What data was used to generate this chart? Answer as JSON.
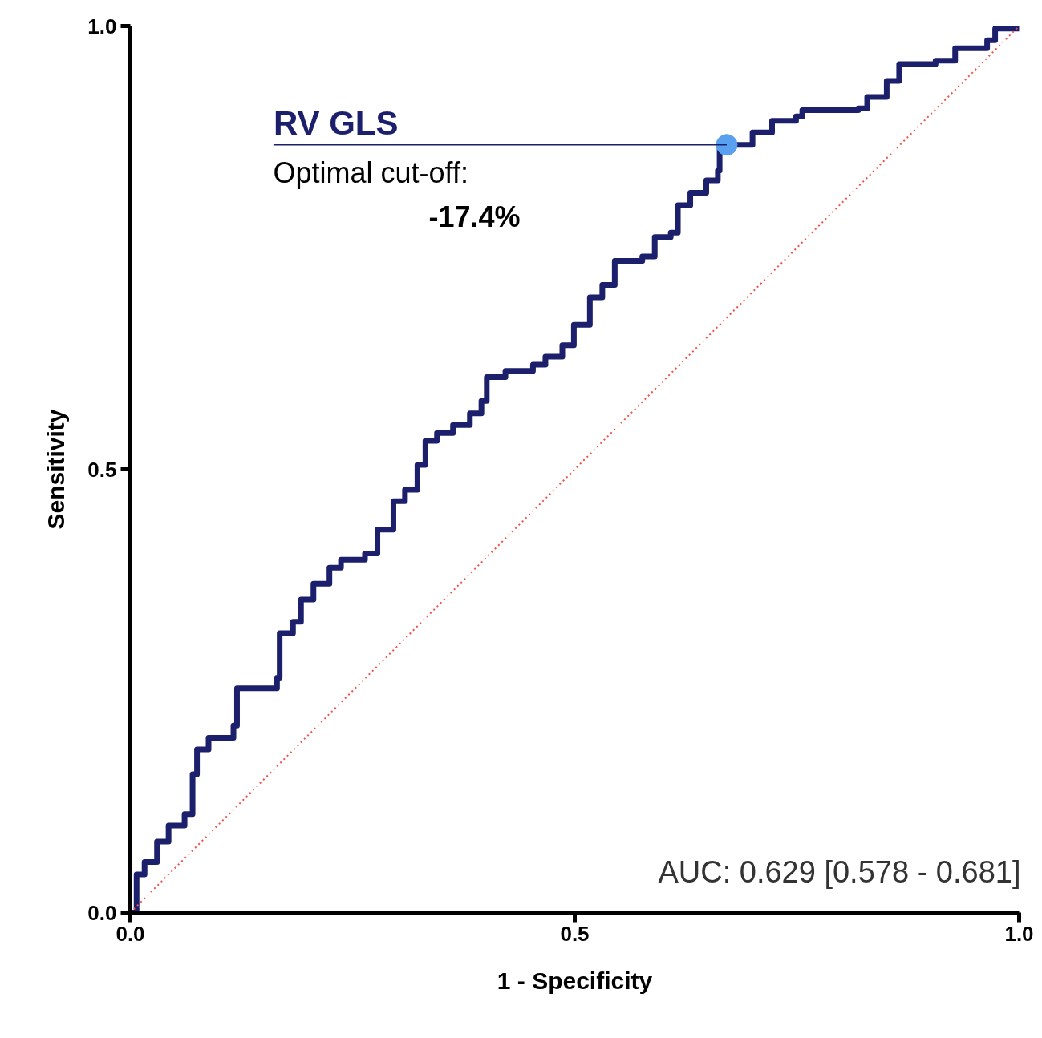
{
  "chart_data": {
    "type": "line",
    "xlabel": "1 - Specificity",
    "ylabel": "Sensitivity",
    "xlim": [
      0,
      1
    ],
    "ylim": [
      0,
      1
    ],
    "xticks": [
      {
        "value": 0,
        "label": "0.0"
      },
      {
        "value": 0.5,
        "label": "0.5"
      },
      {
        "value": 1,
        "label": "1.0"
      }
    ],
    "yticks": [
      {
        "value": 0,
        "label": "0.0"
      },
      {
        "value": 0.5,
        "label": "0.5"
      },
      {
        "value": 1,
        "label": "1.0"
      }
    ],
    "grid": false,
    "series": [
      {
        "type": "step",
        "color": "#1c1f6b",
        "line_style": "solid",
        "x": [
          0,
          0.007,
          0.016,
          0.03,
          0.043,
          0.061,
          0.07,
          0.075,
          0.088,
          0.116,
          0.12,
          0.165,
          0.168,
          0.183,
          0.192,
          0.206,
          0.224,
          0.237,
          0.264,
          0.278,
          0.296,
          0.309,
          0.323,
          0.332,
          0.345,
          0.363,
          0.382,
          0.395,
          0.401,
          0.422,
          0.453,
          0.467,
          0.486,
          0.499,
          0.517,
          0.531,
          0.545,
          0.576,
          0.59,
          0.608,
          0.616,
          0.63,
          0.648,
          0.661,
          0.663,
          0.671,
          0.7,
          0.722,
          0.749,
          0.756,
          0.819,
          0.829,
          0.851,
          0.865,
          0.906,
          0.928,
          0.964,
          0.973,
          1
        ],
        "values": [
          0,
          0.043,
          0.057,
          0.08,
          0.098,
          0.111,
          0.156,
          0.184,
          0.197,
          0.211,
          0.253,
          0.265,
          0.315,
          0.328,
          0.353,
          0.371,
          0.389,
          0.398,
          0.405,
          0.432,
          0.464,
          0.477,
          0.505,
          0.532,
          0.541,
          0.55,
          0.563,
          0.577,
          0.604,
          0.611,
          0.618,
          0.627,
          0.64,
          0.663,
          0.694,
          0.708,
          0.735,
          0.74,
          0.762,
          0.767,
          0.798,
          0.812,
          0.826,
          0.837,
          0.866,
          0.866,
          0.88,
          0.893,
          0.898,
          0.905,
          0.907,
          0.92,
          0.938,
          0.957,
          0.961,
          0.975,
          0.984,
          0.997,
          1
        ]
      },
      {
        "color": "#f0544a",
        "line_style": "dotted",
        "x": [
          0,
          1
        ],
        "values": [
          0,
          1
        ]
      },
      {
        "type": "scatter",
        "color": "#5aa0f0",
        "marker": "circle",
        "x": [
          0.671
        ],
        "values": [
          0.866
        ]
      }
    ],
    "annotations": [
      {
        "text": "RV GLS",
        "x": 0.671,
        "y": 0.866
      },
      "Optimal cut-off:",
      "-17.4%",
      "AUC: 0.629 [0.578 - 0.681]"
    ]
  }
}
